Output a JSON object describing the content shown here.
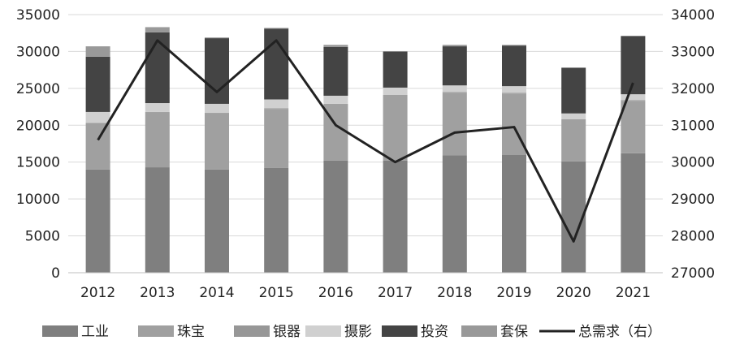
{
  "chart_data": {
    "type": "bar",
    "stacked": true,
    "categories": [
      "2012",
      "2013",
      "2014",
      "2015",
      "2016",
      "2017",
      "2018",
      "2019",
      "2020",
      "2021"
    ],
    "series": [
      {
        "name": "工业",
        "color": "#7f7f7f",
        "values": [
          14000,
          14300,
          14000,
          14200,
          15200,
          15200,
          15900,
          16000,
          15100,
          16200
        ]
      },
      {
        "name": "珠宝",
        "color": "#a0a0a0",
        "values": [
          6200,
          7400,
          7600,
          8000,
          7600,
          8800,
          8500,
          8300,
          5600,
          7100
        ]
      },
      {
        "name": "银器",
        "color": "#979797",
        "values": [
          100,
          100,
          100,
          100,
          100,
          100,
          100,
          100,
          100,
          100
        ]
      },
      {
        "name": "摄影",
        "color": "#d0d0d0",
        "values": [
          1500,
          1200,
          1200,
          1200,
          1100,
          1000,
          900,
          900,
          800,
          800
        ]
      },
      {
        "name": "投资",
        "color": "#444444",
        "values": [
          7500,
          9600,
          8900,
          9600,
          6600,
          4900,
          5300,
          5500,
          6200,
          7900
        ]
      },
      {
        "name": "套保",
        "color": "#999999",
        "values": [
          1400,
          700,
          100,
          100,
          300,
          0,
          200,
          100,
          0,
          0
        ]
      }
    ],
    "line_series": {
      "name": "总需求（右）",
      "color": "#222222",
      "axis": "right",
      "values": [
        30600,
        33300,
        31900,
        33300,
        31000,
        30000,
        30800,
        30950,
        27850,
        32150
      ]
    },
    "ylim": [
      0,
      35000
    ],
    "yticks": [
      "0",
      "5000",
      "10000",
      "15000",
      "20000",
      "25000",
      "30000",
      "35000"
    ],
    "y2lim": [
      27000,
      34000
    ],
    "y2ticks": [
      "27000",
      "28000",
      "29000",
      "30000",
      "31000",
      "32000",
      "33000",
      "34000"
    ],
    "grid": true,
    "legend": "bottom"
  }
}
